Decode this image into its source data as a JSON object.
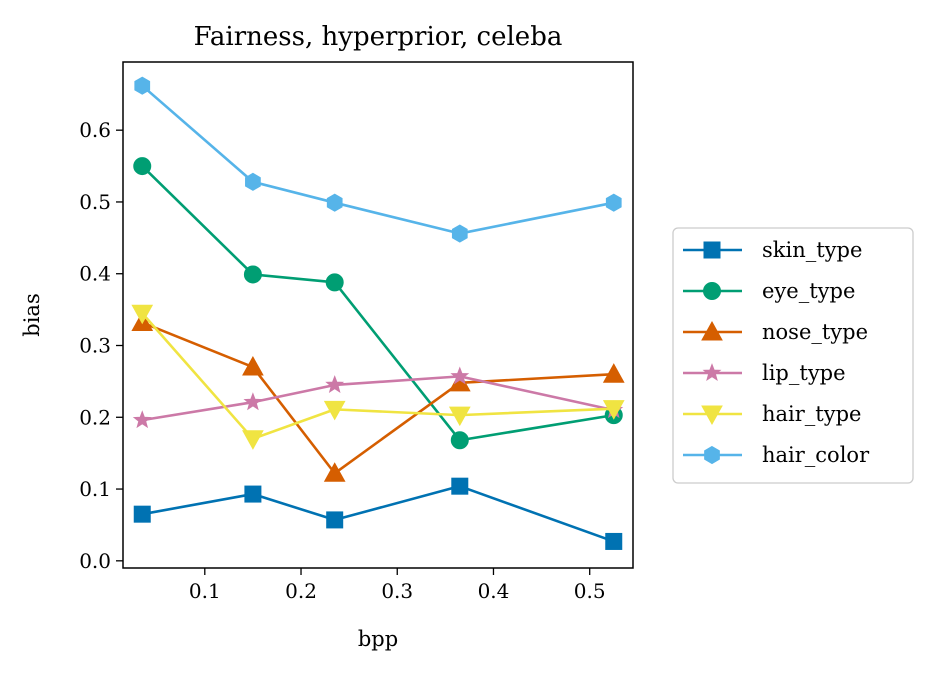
{
  "chart_data": {
    "type": "line",
    "title": "Fairness, hyperprior, celeba",
    "xlabel": "bpp",
    "ylabel": "bias",
    "xlim": [
      0.015,
      0.545
    ],
    "ylim": [
      -0.01,
      0.695
    ],
    "xticks": [
      0.1,
      0.2,
      0.3,
      0.4,
      0.5
    ],
    "xtick_labels": [
      "0.1",
      "0.2",
      "0.3",
      "0.4",
      "0.5"
    ],
    "yticks": [
      0.0,
      0.1,
      0.2,
      0.3,
      0.4,
      0.5,
      0.6
    ],
    "ytick_labels": [
      "0.0",
      "0.1",
      "0.2",
      "0.3",
      "0.4",
      "0.5",
      "0.6"
    ],
    "grid": false,
    "legend_position": "right, outside plot",
    "x": [
      0.035,
      0.15,
      0.235,
      0.365,
      0.525
    ],
    "series": [
      {
        "name": "skin_type",
        "color": "#0072b2",
        "marker": "square",
        "values": [
          0.065,
          0.093,
          0.057,
          0.104,
          0.027
        ]
      },
      {
        "name": "eye_type",
        "color": "#009e73",
        "marker": "circle",
        "values": [
          0.55,
          0.399,
          0.388,
          0.168,
          0.203
        ]
      },
      {
        "name": "nose_type",
        "color": "#d55e00",
        "marker": "triangle-up",
        "values": [
          0.332,
          0.27,
          0.122,
          0.248,
          0.26
        ]
      },
      {
        "name": "lip_type",
        "color": "#cc79a7",
        "marker": "star",
        "values": [
          0.196,
          0.221,
          0.245,
          0.257,
          0.21
        ]
      },
      {
        "name": "hair_type",
        "color": "#f0e442",
        "marker": "triangle-down",
        "values": [
          0.345,
          0.17,
          0.211,
          0.203,
          0.212
        ]
      },
      {
        "name": "hair_color",
        "color": "#56b4e9",
        "marker": "hexagon",
        "values": [
          0.662,
          0.528,
          0.499,
          0.456,
          0.499
        ]
      }
    ]
  }
}
